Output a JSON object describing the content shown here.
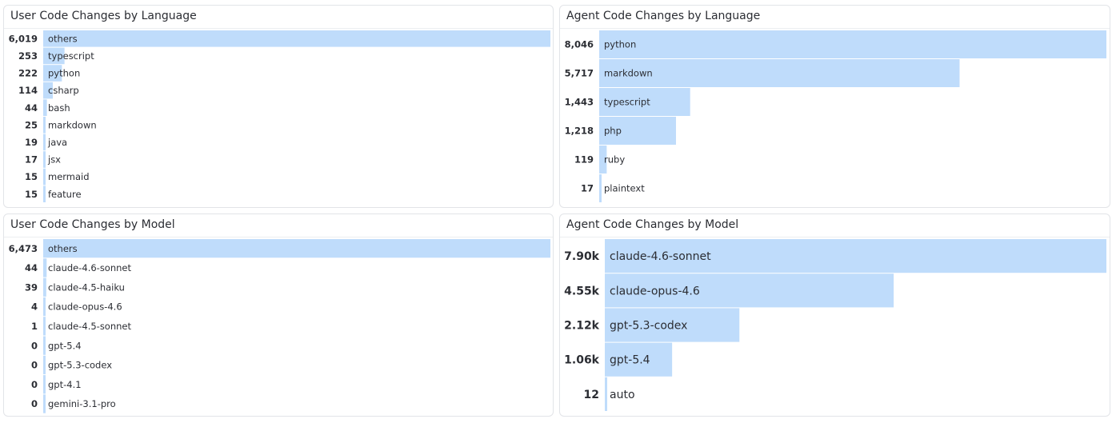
{
  "colors": {
    "bar": "#bfdcfb",
    "text": "#2b2d33",
    "border": "#e2e4e8"
  },
  "panels": {
    "user_lang": {
      "title": "User Code Changes by Language"
    },
    "agent_lang": {
      "title": "Agent Code Changes by Language"
    },
    "user_model": {
      "title": "User Code Changes by Model"
    },
    "agent_model": {
      "title": "Agent Code Changes by Model"
    }
  },
  "chart_data": [
    {
      "id": "user_lang",
      "type": "bar",
      "orientation": "horizontal",
      "title": "User Code Changes by Language",
      "categories": [
        "others",
        "typescript",
        "python",
        "csharp",
        "bash",
        "markdown",
        "java",
        "jsx",
        "mermaid",
        "feature"
      ],
      "values": [
        6019,
        253,
        222,
        114,
        44,
        25,
        19,
        17,
        15,
        15
      ],
      "value_labels": [
        "6,019",
        "253",
        "222",
        "114",
        "44",
        "25",
        "19",
        "17",
        "15",
        "15"
      ]
    },
    {
      "id": "agent_lang",
      "type": "bar",
      "orientation": "horizontal",
      "title": "Agent Code Changes by Language",
      "categories": [
        "python",
        "markdown",
        "typescript",
        "php",
        "ruby",
        "plaintext"
      ],
      "values": [
        8046,
        5717,
        1443,
        1218,
        119,
        17
      ],
      "value_labels": [
        "8,046",
        "5,717",
        "1,443",
        "1,218",
        "119",
        "17"
      ]
    },
    {
      "id": "user_model",
      "type": "bar",
      "orientation": "horizontal",
      "title": "User Code Changes by Model",
      "categories": [
        "others",
        "claude-4.6-sonnet",
        "claude-4.5-haiku",
        "claude-opus-4.6",
        "claude-4.5-sonnet",
        "gpt-5.4",
        "gpt-5.3-codex",
        "gpt-4.1",
        "gemini-3.1-pro"
      ],
      "values": [
        6473,
        44,
        39,
        4,
        1,
        0,
        0,
        0,
        0
      ],
      "value_labels": [
        "6,473",
        "44",
        "39",
        "4",
        "1",
        "0",
        "0",
        "0",
        "0"
      ]
    },
    {
      "id": "agent_model",
      "type": "bar",
      "orientation": "horizontal",
      "title": "Agent Code Changes by Model",
      "categories": [
        "claude-4.6-sonnet",
        "claude-opus-4.6",
        "gpt-5.3-codex",
        "gpt-5.4",
        "auto"
      ],
      "values": [
        7900,
        4550,
        2120,
        1060,
        12
      ],
      "value_labels": [
        "7.90k",
        "4.55k",
        "2.12k",
        "1.06k",
        "12"
      ]
    }
  ]
}
